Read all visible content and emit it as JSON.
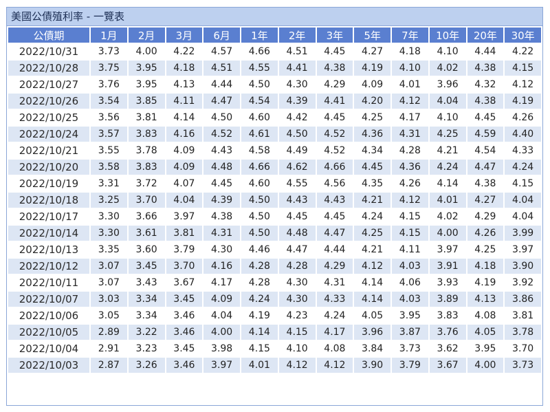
{
  "title": "美國公債殖利率 - 一覽表",
  "table": {
    "headers": [
      "公債期",
      "1月",
      "2月",
      "3月",
      "6月",
      "1年",
      "2年",
      "3年",
      "5年",
      "7年",
      "10年",
      "20年",
      "30年"
    ],
    "rows": [
      [
        "2022/10/31",
        "3.73",
        "4.00",
        "4.22",
        "4.57",
        "4.66",
        "4.51",
        "4.45",
        "4.27",
        "4.18",
        "4.10",
        "4.44",
        "4.22"
      ],
      [
        "2022/10/28",
        "3.75",
        "3.95",
        "4.18",
        "4.51",
        "4.55",
        "4.41",
        "4.38",
        "4.19",
        "4.10",
        "4.02",
        "4.38",
        "4.15"
      ],
      [
        "2022/10/27",
        "3.76",
        "3.95",
        "4.13",
        "4.44",
        "4.50",
        "4.30",
        "4.29",
        "4.09",
        "4.01",
        "3.96",
        "4.32",
        "4.12"
      ],
      [
        "2022/10/26",
        "3.54",
        "3.85",
        "4.11",
        "4.47",
        "4.54",
        "4.39",
        "4.41",
        "4.20",
        "4.12",
        "4.04",
        "4.38",
        "4.19"
      ],
      [
        "2022/10/25",
        "3.56",
        "3.81",
        "4.14",
        "4.50",
        "4.60",
        "4.42",
        "4.45",
        "4.25",
        "4.17",
        "4.10",
        "4.45",
        "4.26"
      ],
      [
        "2022/10/24",
        "3.57",
        "3.83",
        "4.16",
        "4.52",
        "4.61",
        "4.50",
        "4.52",
        "4.36",
        "4.31",
        "4.25",
        "4.59",
        "4.40"
      ],
      [
        "2022/10/21",
        "3.55",
        "3.78",
        "4.09",
        "4.43",
        "4.58",
        "4.49",
        "4.52",
        "4.34",
        "4.28",
        "4.21",
        "4.54",
        "4.33"
      ],
      [
        "2022/10/20",
        "3.58",
        "3.83",
        "4.09",
        "4.48",
        "4.66",
        "4.62",
        "4.66",
        "4.45",
        "4.36",
        "4.24",
        "4.47",
        "4.24"
      ],
      [
        "2022/10/19",
        "3.31",
        "3.72",
        "4.07",
        "4.45",
        "4.60",
        "4.55",
        "4.56",
        "4.35",
        "4.26",
        "4.14",
        "4.38",
        "4.15"
      ],
      [
        "2022/10/18",
        "3.25",
        "3.70",
        "4.04",
        "4.39",
        "4.50",
        "4.43",
        "4.43",
        "4.21",
        "4.12",
        "4.01",
        "4.27",
        "4.04"
      ],
      [
        "2022/10/17",
        "3.30",
        "3.66",
        "3.97",
        "4.38",
        "4.50",
        "4.45",
        "4.45",
        "4.24",
        "4.15",
        "4.02",
        "4.29",
        "4.04"
      ],
      [
        "2022/10/14",
        "3.30",
        "3.61",
        "3.81",
        "4.31",
        "4.50",
        "4.48",
        "4.47",
        "4.25",
        "4.15",
        "4.00",
        "4.26",
        "3.99"
      ],
      [
        "2022/10/13",
        "3.35",
        "3.60",
        "3.79",
        "4.30",
        "4.46",
        "4.47",
        "4.44",
        "4.21",
        "4.11",
        "3.97",
        "4.25",
        "3.97"
      ],
      [
        "2022/10/12",
        "3.07",
        "3.45",
        "3.70",
        "4.16",
        "4.28",
        "4.28",
        "4.29",
        "4.12",
        "4.03",
        "3.91",
        "4.18",
        "3.90"
      ],
      [
        "2022/10/11",
        "3.07",
        "3.43",
        "3.67",
        "4.17",
        "4.28",
        "4.30",
        "4.31",
        "4.14",
        "4.06",
        "3.93",
        "4.19",
        "3.92"
      ],
      [
        "2022/10/07",
        "3.03",
        "3.34",
        "3.45",
        "4.09",
        "4.24",
        "4.30",
        "4.33",
        "4.14",
        "4.03",
        "3.89",
        "4.13",
        "3.86"
      ],
      [
        "2022/10/06",
        "3.05",
        "3.34",
        "3.46",
        "4.04",
        "4.19",
        "4.23",
        "4.24",
        "4.05",
        "3.95",
        "3.83",
        "4.08",
        "3.81"
      ],
      [
        "2022/10/05",
        "2.89",
        "3.22",
        "3.46",
        "4.00",
        "4.14",
        "4.15",
        "4.17",
        "3.96",
        "3.87",
        "3.76",
        "4.05",
        "3.78"
      ],
      [
        "2022/10/04",
        "2.91",
        "3.23",
        "3.45",
        "3.98",
        "4.15",
        "4.10",
        "4.08",
        "3.84",
        "3.73",
        "3.62",
        "3.95",
        "3.70"
      ],
      [
        "2022/10/03",
        "2.87",
        "3.26",
        "3.46",
        "3.97",
        "4.01",
        "4.12",
        "4.12",
        "3.90",
        "3.79",
        "3.67",
        "4.00",
        "3.73"
      ]
    ]
  },
  "colors": {
    "header_bg": "#5a7fd0",
    "title_bg": "#bdd0ef",
    "row_alt_bg": "#dde6f4",
    "border": "#8aa6d8"
  }
}
